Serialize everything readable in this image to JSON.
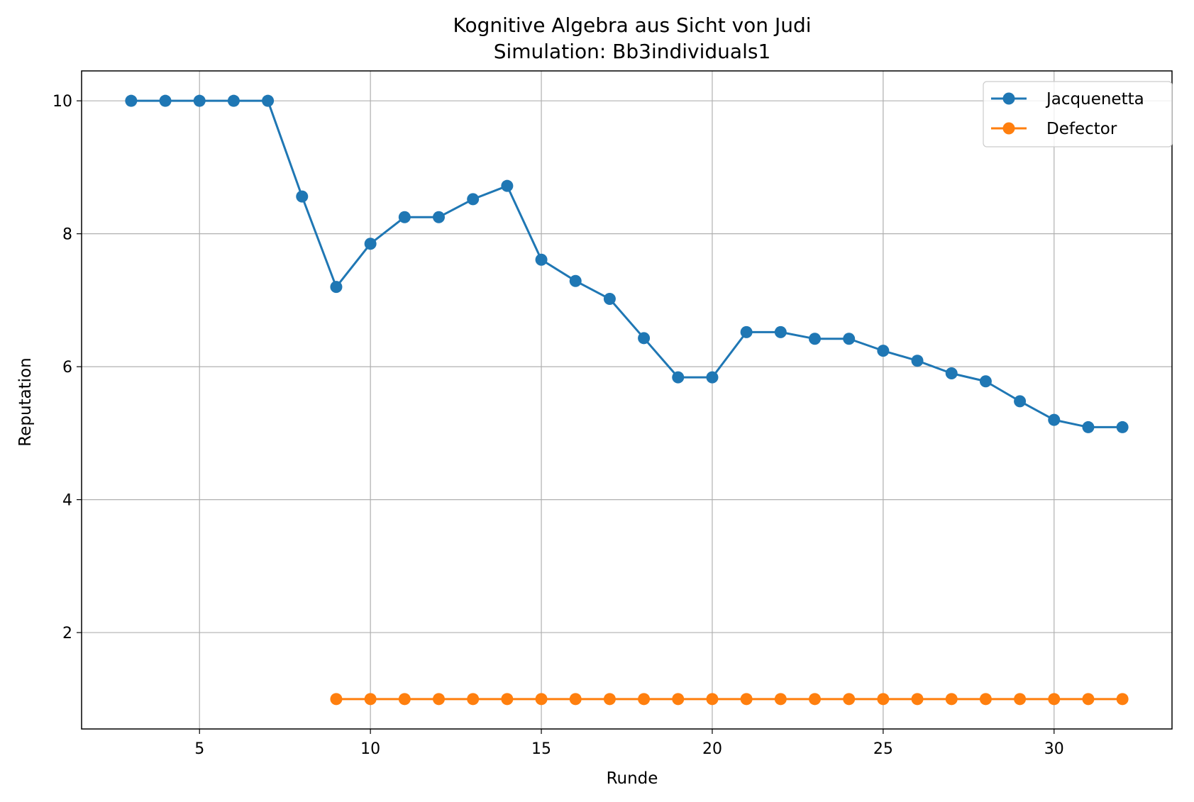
{
  "chart_data": {
    "type": "line",
    "title": "Kognitive Algebra aus Sicht von Judi",
    "subtitle": "Simulation: Bb3individuals1",
    "xlabel": "Runde",
    "ylabel": "Reputation",
    "xlim": [
      1.55,
      33.45
    ],
    "ylim": [
      0.55,
      10.45
    ],
    "xticks": [
      5,
      10,
      15,
      20,
      25,
      30
    ],
    "yticks": [
      2,
      4,
      6,
      8,
      10
    ],
    "grid": true,
    "legend_position": "top-right",
    "series": [
      {
        "name": "Jacquenetta",
        "color": "#1f77b4",
        "x": [
          3,
          4,
          5,
          6,
          7,
          8,
          9,
          10,
          11,
          12,
          13,
          14,
          15,
          16,
          17,
          18,
          19,
          20,
          21,
          22,
          23,
          24,
          25,
          26,
          27,
          28,
          29,
          30,
          31,
          32
        ],
        "values": [
          10,
          10,
          10,
          10,
          10,
          8.56,
          7.2,
          7.85,
          8.25,
          8.25,
          8.52,
          8.72,
          7.61,
          7.29,
          7.02,
          6.43,
          5.84,
          5.84,
          6.52,
          6.52,
          6.42,
          6.42,
          6.24,
          6.09,
          5.9,
          5.78,
          5.48,
          5.2,
          5.09,
          5.09
        ]
      },
      {
        "name": "Defector",
        "color": "#ff7f0e",
        "x": [
          9,
          10,
          11,
          12,
          13,
          14,
          15,
          16,
          17,
          18,
          19,
          20,
          21,
          22,
          23,
          24,
          25,
          26,
          27,
          28,
          29,
          30,
          31,
          32
        ],
        "values": [
          1,
          1,
          1,
          1,
          1,
          1,
          1,
          1,
          1,
          1,
          1,
          1,
          1,
          1,
          1,
          1,
          1,
          1,
          1,
          1,
          1,
          1,
          1,
          1
        ]
      }
    ]
  }
}
